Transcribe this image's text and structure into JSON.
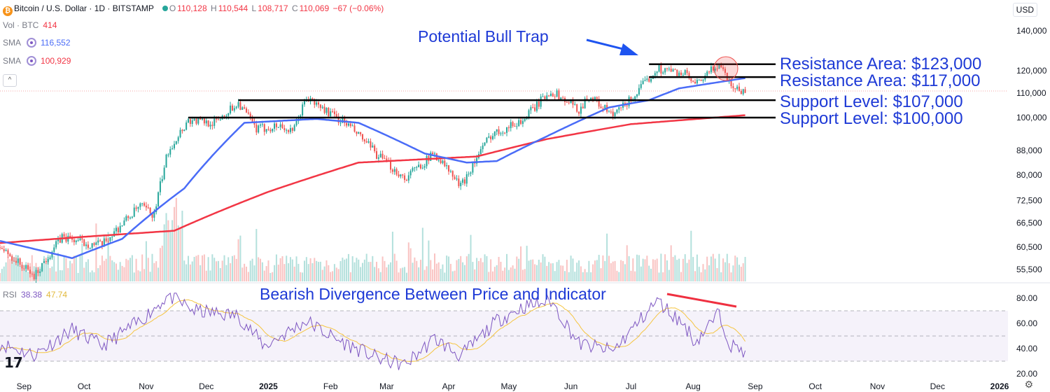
{
  "header": {
    "symbol": "Bitcoin / U.S. Dollar · 1D · BITSTAMP",
    "o_label": "O",
    "o": "110,128",
    "h_label": "H",
    "h": "110,544",
    "l_label": "L",
    "l": "108,717",
    "c_label": "C",
    "c": "110,069",
    "change": "−67 (−0.06%)"
  },
  "indicators": {
    "vol_label": "Vol · BTC",
    "vol_value": "414",
    "sma1_label": "SMA",
    "sma1_value": "116,552",
    "sma1_color": "#4a6cf7",
    "sma2_label": "SMA",
    "sma2_value": "100,929",
    "sma2_color": "#f23645"
  },
  "currency": "USD",
  "rsi": {
    "label": "RSI",
    "value": "38.38",
    "ma_value": "47.74",
    "color": "#7e57c2",
    "ma_color": "#f5c542"
  },
  "annotations": {
    "bull_trap": "Potential Bull Trap",
    "res1": "Resistance Area: $123,000",
    "res2": "Resistance Area: $117,000",
    "sup1": "Support Level: $107,000",
    "sup2": "Support Level: $100,000",
    "divergence": "Bearish Divergence Between Price and Indicator"
  },
  "chart_data": {
    "type": "candlestick",
    "price_scale": "log",
    "price_ticks": [
      55500,
      60500,
      66500,
      72500,
      80000,
      88000,
      100000,
      110000,
      120000,
      140000
    ],
    "price_tick_labels": [
      "55,500",
      "60,500",
      "66,500",
      "72,500",
      "80,000",
      "88,000",
      "100,000",
      "110,000",
      "120,000",
      "140,000"
    ],
    "rsi_ticks": [
      20,
      40,
      60,
      80
    ],
    "rsi_tick_labels": [
      "20.00",
      "40.00",
      "60.00",
      "80.00"
    ],
    "x_ticks": [
      "Sep",
      "Oct",
      "Nov",
      "Dec",
      "2025",
      "Feb",
      "Mar",
      "Apr",
      "May",
      "Jun",
      "Jul",
      "Aug",
      "Sep",
      "Oct",
      "Nov",
      "Dec",
      "2026"
    ],
    "price_keypoints": [
      [
        "2024-08-20",
        60500
      ],
      [
        "2024-09-06",
        54000
      ],
      [
        "2024-09-20",
        63000
      ],
      [
        "2024-10-01",
        61500
      ],
      [
        "2024-10-10",
        61000
      ],
      [
        "2024-10-29",
        71000
      ],
      [
        "2024-11-05",
        68500
      ],
      [
        "2024-11-12",
        88000
      ],
      [
        "2024-11-22",
        99000
      ],
      [
        "2024-12-05",
        98000
      ],
      [
        "2024-12-17",
        106000
      ],
      [
        "2024-12-26",
        95500
      ],
      [
        "2025-01-07",
        97000
      ],
      [
        "2025-01-13",
        94000
      ],
      [
        "2025-01-20",
        108000
      ],
      [
        "2025-01-31",
        102000
      ],
      [
        "2025-02-10",
        97000
      ],
      [
        "2025-02-25",
        86000
      ],
      [
        "2025-03-10",
        79000
      ],
      [
        "2025-03-25",
        87000
      ],
      [
        "2025-04-07",
        76500
      ],
      [
        "2025-04-22",
        93500
      ],
      [
        "2025-05-08",
        99000
      ],
      [
        "2025-05-22",
        111000
      ],
      [
        "2025-06-05",
        103000
      ],
      [
        "2025-06-10",
        109000
      ],
      [
        "2025-06-22",
        100500
      ],
      [
        "2025-07-03",
        109000
      ],
      [
        "2025-07-14",
        121000
      ],
      [
        "2025-07-28",
        118500
      ],
      [
        "2025-08-02",
        113000
      ],
      [
        "2025-08-14",
        123500
      ],
      [
        "2025-08-20",
        113500
      ],
      [
        "2025-08-27",
        110069
      ]
    ],
    "sma_50_keypoints": [
      [
        "2024-08-20",
        62000
      ],
      [
        "2024-09-25",
        58000
      ],
      [
        "2024-10-20",
        62500
      ],
      [
        "2024-11-20",
        76000
      ],
      [
        "2024-12-20",
        98000
      ],
      [
        "2025-01-25",
        99500
      ],
      [
        "2025-02-15",
        98000
      ],
      [
        "2025-03-20",
        87000
      ],
      [
        "2025-04-10",
        84000
      ],
      [
        "2025-04-25",
        84500
      ],
      [
        "2025-05-20",
        93000
      ],
      [
        "2025-06-20",
        104000
      ],
      [
        "2025-07-10",
        107000
      ],
      [
        "2025-07-25",
        112000
      ],
      [
        "2025-08-27",
        116552
      ]
    ],
    "sma_200_keypoints": [
      [
        "2024-08-20",
        61500
      ],
      [
        "2024-10-01",
        63000
      ],
      [
        "2024-11-15",
        64500
      ],
      [
        "2025-01-01",
        75000
      ],
      [
        "2025-02-15",
        84000
      ],
      [
        "2025-04-15",
        86000
      ],
      [
        "2025-05-20",
        92000
      ],
      [
        "2025-07-01",
        97500
      ],
      [
        "2025-08-27",
        100929
      ]
    ],
    "rsi_keypoints": [
      [
        "2024-08-20",
        44
      ],
      [
        "2024-09-06",
        35
      ],
      [
        "2024-09-25",
        55
      ],
      [
        "2024-10-10",
        42
      ],
      [
        "2024-10-29",
        62
      ],
      [
        "2024-11-12",
        82
      ],
      [
        "2024-11-25",
        70
      ],
      [
        "2024-12-17",
        66
      ],
      [
        "2024-12-30",
        42
      ],
      [
        "2025-01-20",
        62
      ],
      [
        "2025-02-03",
        48
      ],
      [
        "2025-02-25",
        32
      ],
      [
        "2025-03-10",
        27
      ],
      [
        "2025-03-25",
        48
      ],
      [
        "2025-04-07",
        34
      ],
      [
        "2025-04-25",
        62
      ],
      [
        "2025-05-08",
        73
      ],
      [
        "2025-05-22",
        78
      ],
      [
        "2025-06-05",
        44
      ],
      [
        "2025-06-22",
        38
      ],
      [
        "2025-07-14",
        78
      ],
      [
        "2025-07-28",
        58
      ],
      [
        "2025-08-02",
        45
      ],
      [
        "2025-08-14",
        68
      ],
      [
        "2025-08-20",
        42
      ],
      [
        "2025-08-27",
        38.38
      ]
    ],
    "horizontal_levels": [
      {
        "name": "Resistance Area: $123,000",
        "value": 123000,
        "from": "2025-07-10",
        "to": "2025-08-27"
      },
      {
        "name": "Resistance Area: $117,000",
        "value": 117000,
        "from": "2025-07-10",
        "to": "2025-08-27"
      },
      {
        "name": "Support Level: $107,000",
        "value": 107000,
        "from": "2024-12-17",
        "to": "2025-08-27"
      },
      {
        "name": "Support Level: $100,000",
        "value": 100000,
        "from": "2024-11-22",
        "to": "2025-08-27"
      }
    ]
  }
}
